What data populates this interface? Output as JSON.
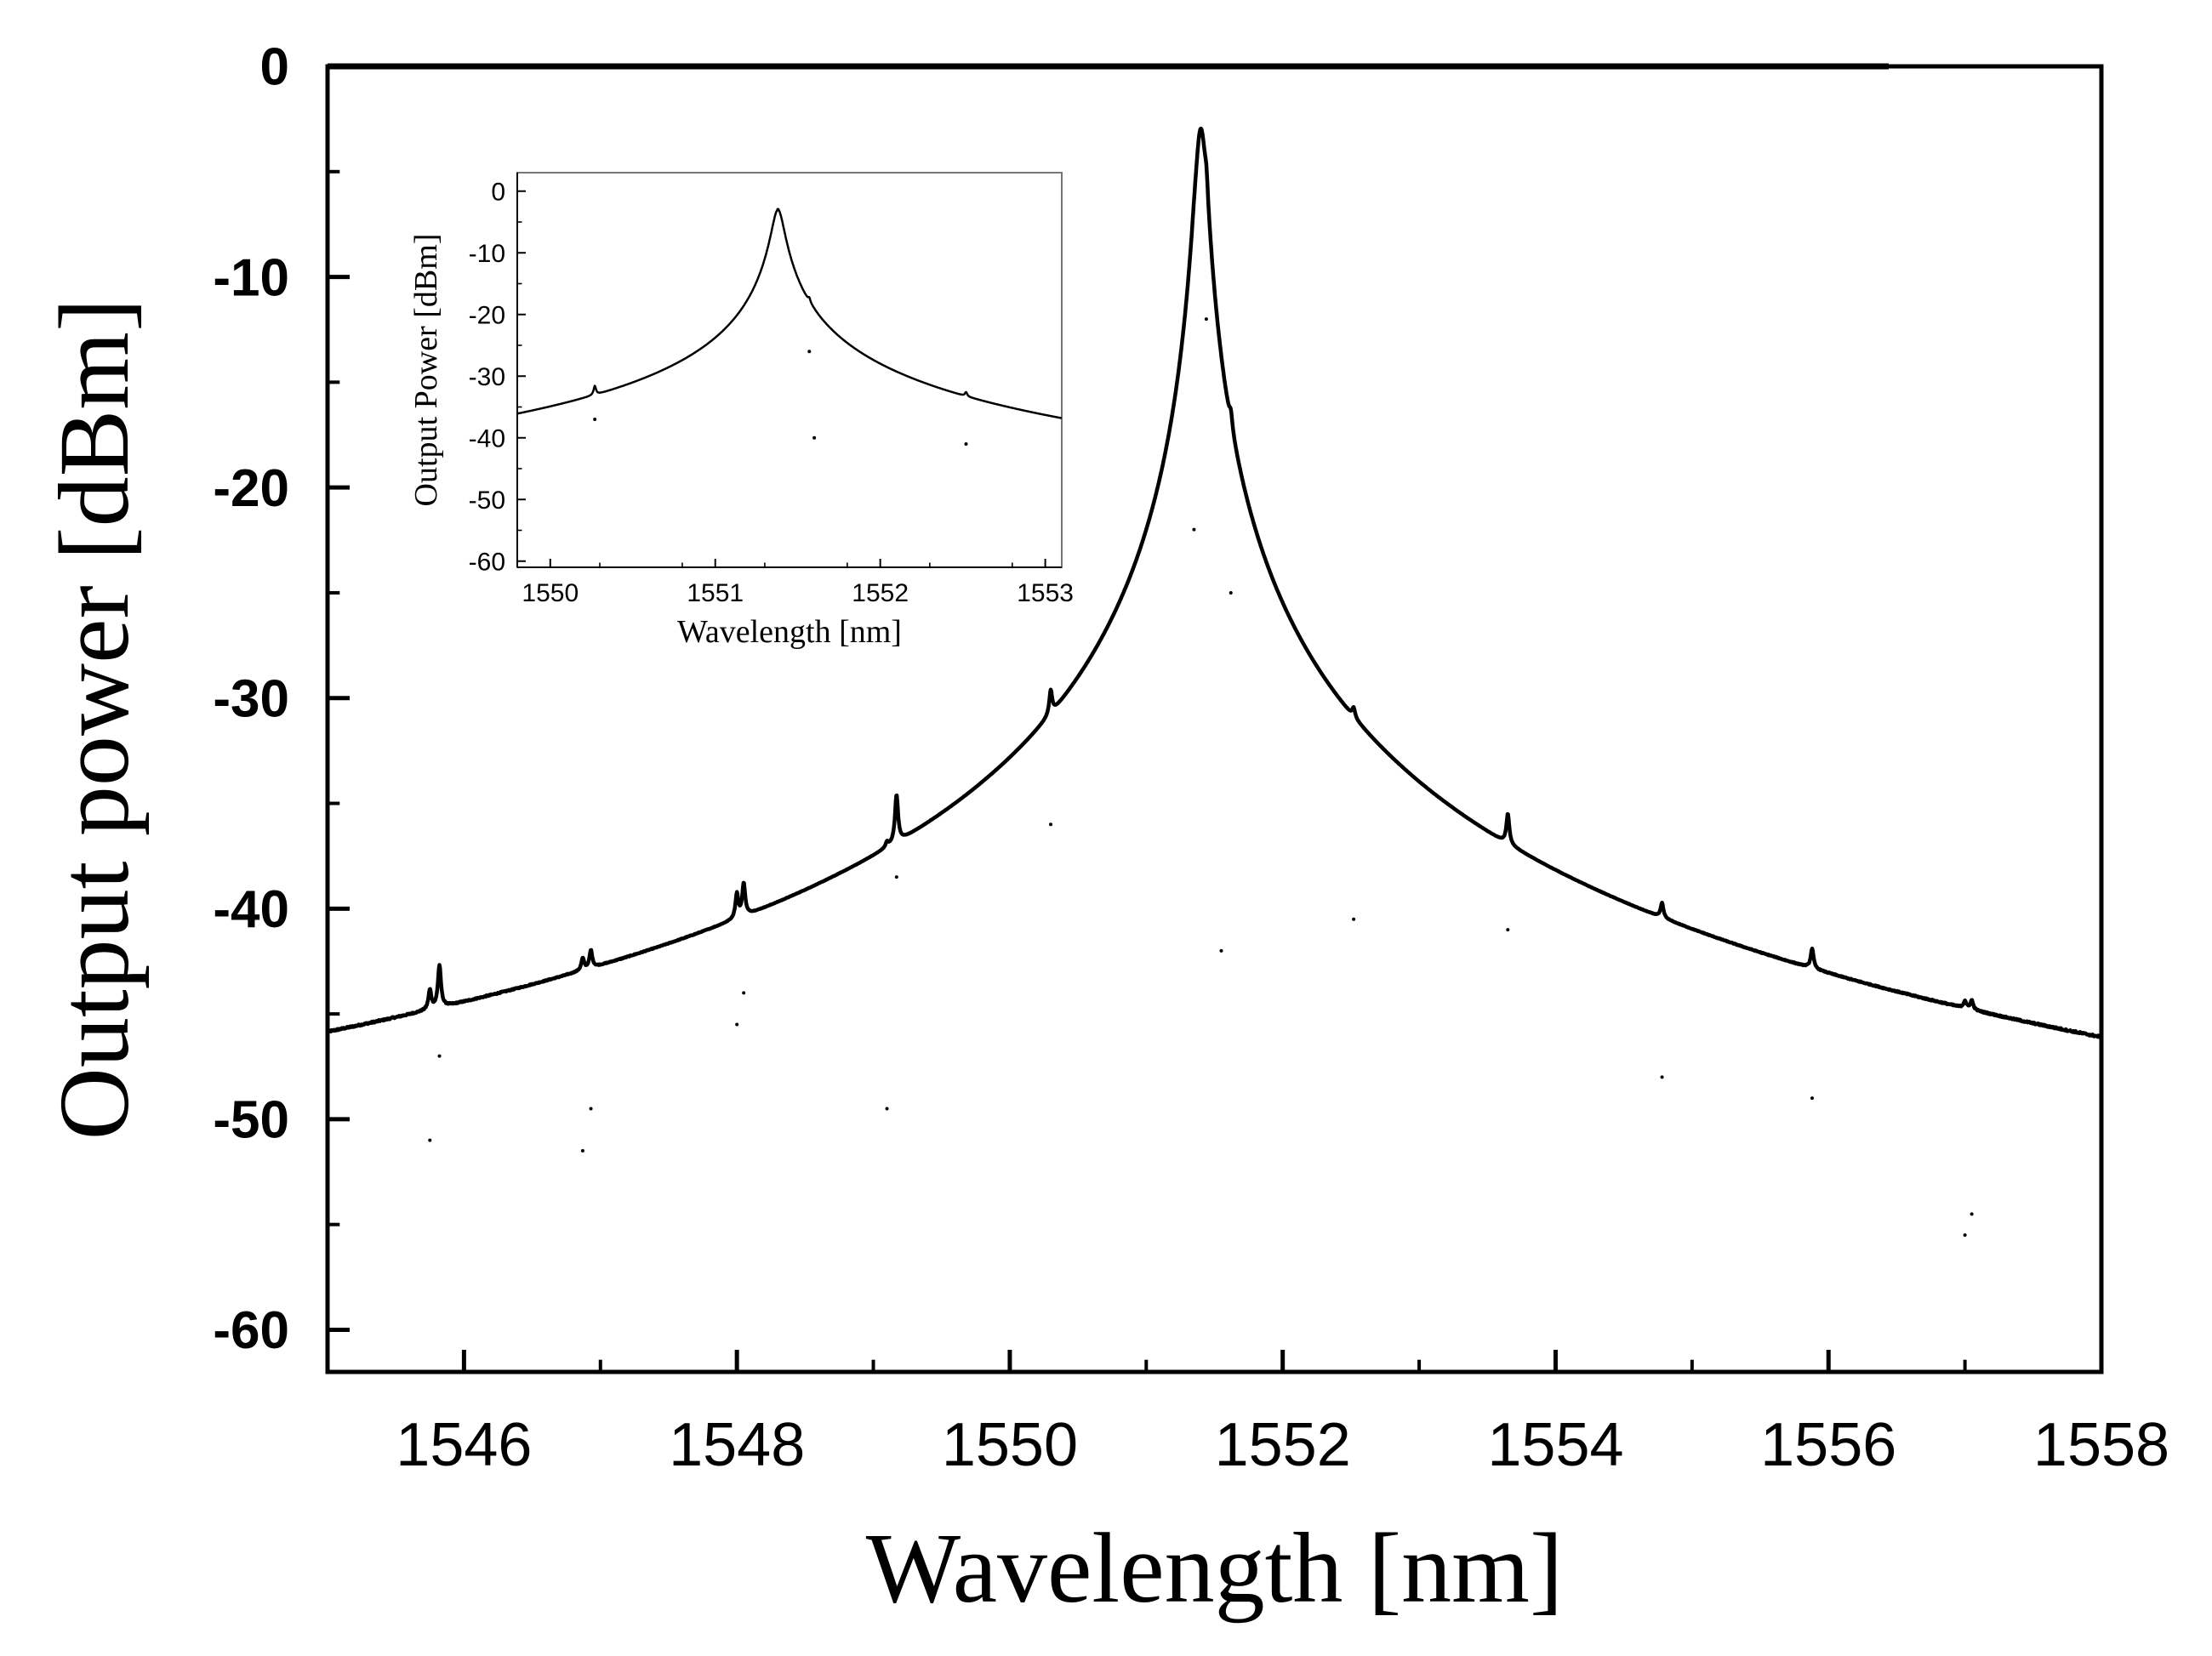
{
  "chart_data": [
    {
      "type": "line",
      "title": "",
      "xlabel": "Wavelength [nm]",
      "ylabel": "Output power [dBm]",
      "xlim": [
        1545,
        1558
      ],
      "ylim": [
        -62,
        0
      ],
      "x_ticks": [
        1546,
        1548,
        1550,
        1552,
        1554,
        1556,
        1558
      ],
      "x_tick_labels": [
        "1546",
        "1548",
        "1550",
        "1552",
        "1554",
        "1556",
        "1558"
      ],
      "y_ticks": [
        0,
        -10,
        -20,
        -30,
        -40,
        -50,
        -60
      ],
      "y_tick_labels": [
        "0",
        "-10",
        "-20",
        "-30",
        "-40",
        "-50",
        "-60"
      ],
      "noise_floor": -60,
      "peaks": [
        {
          "x": 1545.75,
          "y": -51
        },
        {
          "x": 1545.82,
          "y": -47
        },
        {
          "x": 1546.87,
          "y": -51.5
        },
        {
          "x": 1546.93,
          "y": -49.5
        },
        {
          "x": 1548.0,
          "y": -45.5
        },
        {
          "x": 1548.05,
          "y": -44
        },
        {
          "x": 1549.1,
          "y": -49.5
        },
        {
          "x": 1549.17,
          "y": -38.5
        },
        {
          "x": 1550.3,
          "y": -36
        },
        {
          "x": 1551.35,
          "y": -22
        },
        {
          "x": 1551.4,
          "y": -3
        },
        {
          "x": 1551.44,
          "y": -12
        },
        {
          "x": 1551.55,
          "y": -42
        },
        {
          "x": 1551.62,
          "y": -25
        },
        {
          "x": 1552.52,
          "y": -40.5
        },
        {
          "x": 1553.65,
          "y": -41
        },
        {
          "x": 1554.78,
          "y": -48
        },
        {
          "x": 1555.88,
          "y": -49
        },
        {
          "x": 1557.0,
          "y": -55.5
        },
        {
          "x": 1557.05,
          "y": -54.5
        }
      ]
    },
    {
      "type": "line",
      "title": "",
      "xlabel": "Wavelength [nm]",
      "ylabel": "Output Power [dBm]",
      "xlim": [
        1549.8,
        1553.1
      ],
      "ylim": [
        -61,
        3
      ],
      "x_ticks": [
        1550,
        1551,
        1552,
        1553
      ],
      "x_tick_labels": [
        "1550",
        "1551",
        "1552",
        "1553"
      ],
      "y_ticks": [
        0,
        -10,
        -20,
        -30,
        -40,
        -50,
        -60
      ],
      "y_tick_labels": [
        "0",
        "-10",
        "-20",
        "-30",
        "-40",
        "-50",
        "-60"
      ],
      "noise_floor": -60,
      "peaks": [
        {
          "x": 1550.27,
          "y": -37
        },
        {
          "x": 1551.38,
          "y": -3
        },
        {
          "x": 1551.57,
          "y": -26
        },
        {
          "x": 1551.6,
          "y": -40
        },
        {
          "x": 1552.52,
          "y": -41
        }
      ]
    }
  ]
}
